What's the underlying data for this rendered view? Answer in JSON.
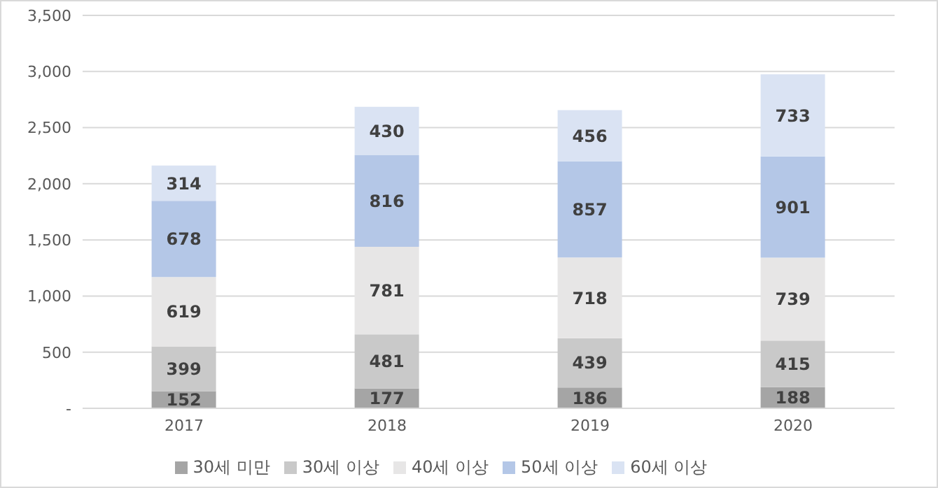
{
  "chart_data": {
    "type": "bar",
    "stacked": true,
    "categories": [
      "2017",
      "2018",
      "2019",
      "2020"
    ],
    "series": [
      {
        "name": "30세 미만",
        "color": "#a5a5a5",
        "values": [
          152,
          177,
          186,
          188
        ]
      },
      {
        "name": "30세 이상",
        "color": "#c9c9c9",
        "values": [
          399,
          481,
          439,
          415
        ]
      },
      {
        "name": "40세 이상",
        "color": "#e7e6e6",
        "values": [
          619,
          781,
          718,
          739
        ]
      },
      {
        "name": "50세 이상",
        "color": "#b4c7e7",
        "values": [
          678,
          816,
          857,
          901
        ]
      },
      {
        "name": "60세 이상",
        "color": "#dae3f3",
        "values": [
          314,
          430,
          456,
          733
        ]
      }
    ],
    "ylim": [
      0,
      3500
    ],
    "yticks": [
      {
        "value": 0,
        "label": "-"
      },
      500,
      {
        "value": 1000,
        "label": "1,000"
      },
      {
        "value": 1500,
        "label": "1,500"
      },
      {
        "value": 2000,
        "label": "2,000"
      },
      {
        "value": 2500,
        "label": "2,500"
      },
      {
        "value": 3000,
        "label": "3,000"
      },
      {
        "value": 3500,
        "label": "3,500"
      }
    ],
    "grid": "y",
    "legend": "bottom",
    "data_labels": true
  }
}
